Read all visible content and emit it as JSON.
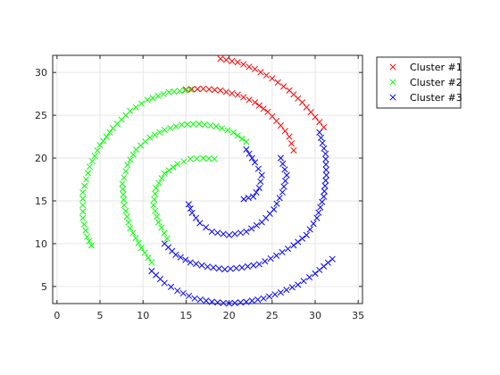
{
  "chart_data": {
    "type": "scatter",
    "title": "",
    "xlabel": "",
    "ylabel": "",
    "xlim": [
      -0.5,
      35.5
    ],
    "ylim": [
      3,
      32
    ],
    "xticks": [
      0,
      5,
      10,
      15,
      20,
      25,
      30,
      35
    ],
    "yticks": [
      5,
      10,
      15,
      20,
      25,
      30
    ],
    "grid": true,
    "legend_placement": "outside-top-right",
    "marker": "x",
    "series": [
      {
        "name": "Cluster #1",
        "color": "#ff0000",
        "points": [
          [
            19.0,
            31.6
          ],
          [
            21.0,
            31.2
          ],
          [
            23.0,
            30.4
          ],
          [
            25.0,
            29.3
          ],
          [
            27.0,
            27.9
          ],
          [
            28.5,
            26.5
          ],
          [
            30.0,
            24.8
          ],
          [
            31.0,
            23.6
          ],
          [
            15.0,
            28.0
          ],
          [
            17.0,
            28.1
          ],
          [
            19.0,
            27.9
          ],
          [
            21.0,
            27.4
          ],
          [
            23.0,
            26.5
          ],
          [
            24.5,
            25.4
          ],
          [
            26.0,
            23.8
          ],
          [
            27.0,
            22.5
          ],
          [
            27.5,
            20.9
          ]
        ]
      },
      {
        "name": "Cluster #2",
        "color": "#00ff00",
        "points": [
          [
            4.0,
            9.8
          ],
          [
            3.5,
            10.8
          ],
          [
            3.0,
            13.0
          ],
          [
            3.0,
            16.0
          ],
          [
            3.8,
            19.0
          ],
          [
            5.0,
            21.5
          ],
          [
            6.5,
            23.5
          ],
          [
            8.5,
            25.5
          ],
          [
            10.5,
            26.8
          ],
          [
            13.0,
            27.7
          ],
          [
            15.5,
            28.0
          ],
          [
            11.0,
            7.8
          ],
          [
            9.8,
            9.5
          ],
          [
            8.5,
            11.8
          ],
          [
            7.8,
            14.5
          ],
          [
            7.6,
            17.0
          ],
          [
            8.2,
            19.2
          ],
          [
            9.2,
            21.0
          ],
          [
            10.8,
            22.4
          ],
          [
            12.5,
            23.3
          ],
          [
            14.5,
            23.9
          ],
          [
            16.5,
            24.0
          ],
          [
            18.5,
            23.7
          ],
          [
            20.5,
            23.0
          ],
          [
            22.0,
            21.9
          ],
          [
            12.8,
            10.6
          ],
          [
            11.8,
            12.5
          ],
          [
            11.2,
            14.5
          ],
          [
            11.5,
            16.5
          ],
          [
            12.5,
            18.2
          ],
          [
            14.0,
            19.3
          ],
          [
            15.5,
            19.9
          ],
          [
            17.0,
            20.0
          ],
          [
            18.3,
            19.9
          ]
        ]
      },
      {
        "name": "Cluster #3",
        "color": "#0000ff",
        "points": [
          [
            32.0,
            8.2
          ],
          [
            30.0,
            6.5
          ],
          [
            28.0,
            5.2
          ],
          [
            26.0,
            4.3
          ],
          [
            24.0,
            3.6
          ],
          [
            22.0,
            3.2
          ],
          [
            20.0,
            3.0
          ],
          [
            18.0,
            3.2
          ],
          [
            16.0,
            3.6
          ],
          [
            14.0,
            4.5
          ],
          [
            12.5,
            5.4
          ],
          [
            11.0,
            6.8
          ],
          [
            30.5,
            23.0
          ],
          [
            31.2,
            20.5
          ],
          [
            31.3,
            18.0
          ],
          [
            31.0,
            15.5
          ],
          [
            30.2,
            13.0
          ],
          [
            29.0,
            11.0
          ],
          [
            27.5,
            9.8
          ],
          [
            25.5,
            8.6
          ],
          [
            23.5,
            7.6
          ],
          [
            21.5,
            7.2
          ],
          [
            19.5,
            7.0
          ],
          [
            17.5,
            7.3
          ],
          [
            15.5,
            7.8
          ],
          [
            13.8,
            8.7
          ],
          [
            12.5,
            10.0
          ],
          [
            22.0,
            21.0
          ],
          [
            23.0,
            19.5
          ],
          [
            23.8,
            18.0
          ],
          [
            23.5,
            16.5
          ],
          [
            22.8,
            15.5
          ],
          [
            21.7,
            15.2
          ],
          [
            26.0,
            20.0
          ],
          [
            26.7,
            18.0
          ],
          [
            26.2,
            16.0
          ],
          [
            25.2,
            14.0
          ],
          [
            23.8,
            12.5
          ],
          [
            22.0,
            11.4
          ],
          [
            20.0,
            11.0
          ],
          [
            18.0,
            11.4
          ],
          [
            16.6,
            12.4
          ],
          [
            15.7,
            13.6
          ],
          [
            15.3,
            14.6
          ]
        ]
      }
    ]
  }
}
